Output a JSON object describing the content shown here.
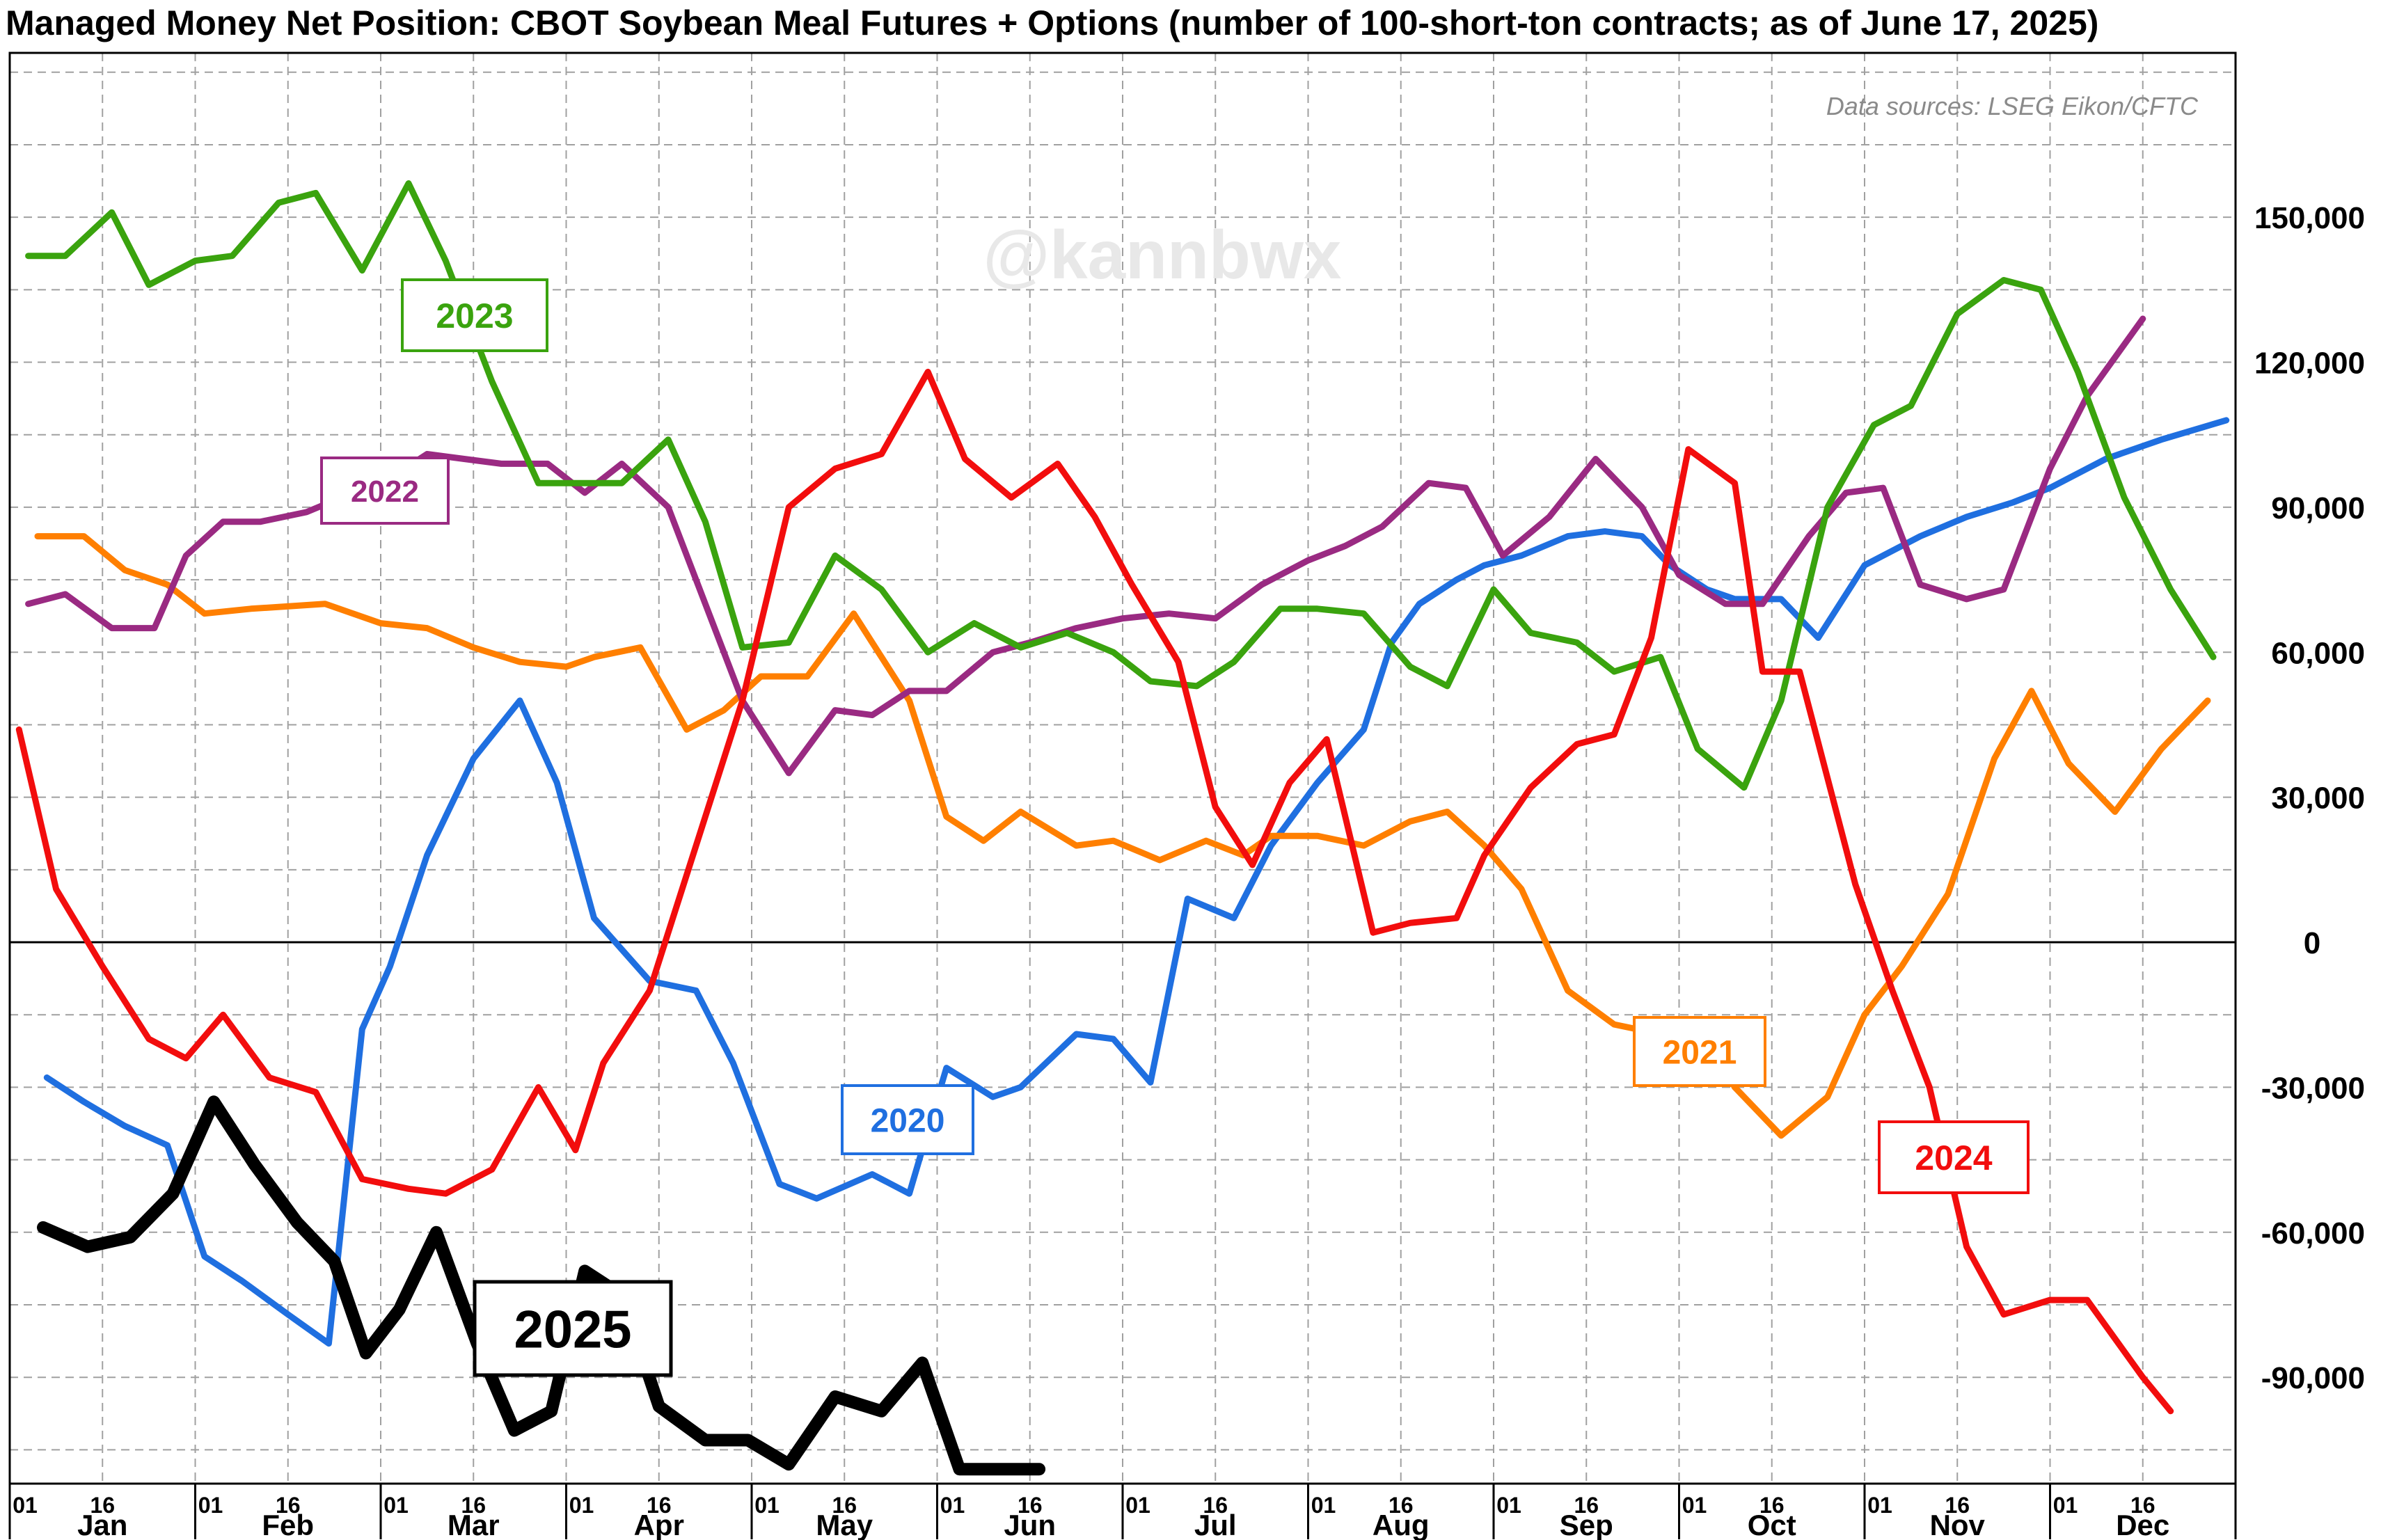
{
  "title": "Managed Money Net Position: CBOT Soybean Meal Futures + Options (number of 100-short-ton contracts; as of June 17, 2025)",
  "source_note": "Data sources: LSEG Eikon/CFTC",
  "watermark": "@kannbwx",
  "colors": {
    "2020": "#1f6fe0",
    "2021": "#ff7f00",
    "2022": "#9a2a82",
    "2023": "#3aa30e",
    "2024": "#f20d0d",
    "2025": "#000000",
    "grid": "#a0a0a0",
    "zero_line": "#000000"
  },
  "chart_data": {
    "type": "line",
    "title": "Managed Money Net Position: CBOT Soybean Meal Futures + Options (number of 100-short-ton contracts; as of June 17, 2025)",
    "xlabel": "",
    "ylabel": "",
    "x_axis": {
      "unit": "month",
      "range": [
        0,
        12
      ],
      "months": [
        "Jan",
        "Feb",
        "Mar",
        "Apr",
        "May",
        "Jun",
        "Jul",
        "Aug",
        "Sep",
        "Oct",
        "Nov",
        "Dec"
      ],
      "day_ticks": [
        "01",
        "16"
      ]
    },
    "ylim": [
      -112000,
      184000
    ],
    "y_ticks": [
      150000,
      120000,
      90000,
      60000,
      30000,
      0,
      -30000,
      -60000,
      -90000
    ],
    "y_tick_labels": [
      "150,000",
      "120,000",
      "90,000",
      "60,000",
      "30,000",
      "0",
      "-30,000",
      "-60,000",
      "-90,000"
    ],
    "y_axis_position": "right",
    "grid": true,
    "series": [
      {
        "name": "2020",
        "x": [
          0.2,
          0.4,
          0.62,
          0.85,
          1.05,
          1.25,
          1.5,
          1.72,
          1.9,
          2.05,
          2.25,
          2.5,
          2.75,
          2.95,
          3.15,
          3.45,
          3.7,
          3.9,
          4.15,
          4.35,
          4.65,
          4.85,
          5.05,
          5.3,
          5.45,
          5.75,
          5.95,
          6.15,
          6.35,
          6.6,
          6.8,
          7.05,
          7.3,
          7.45,
          7.6,
          7.8,
          7.95,
          8.15,
          8.4,
          8.6,
          8.8,
          8.95,
          9.15,
          9.3,
          9.55,
          9.75,
          10.0,
          10.3,
          10.55,
          10.8,
          11.0,
          11.3,
          11.6,
          11.95
        ],
        "y": [
          -28000,
          -33000,
          -38000,
          -42000,
          -65000,
          -70000,
          -77000,
          -83000,
          -18000,
          -5000,
          18000,
          38000,
          50000,
          33000,
          5000,
          -8000,
          -10000,
          -25000,
          -50000,
          -53000,
          -48000,
          -52000,
          -26000,
          -32000,
          -30000,
          -19000,
          -20000,
          -29000,
          9000,
          5000,
          20000,
          33000,
          44000,
          62000,
          70000,
          75000,
          78000,
          80000,
          84000,
          85000,
          84000,
          78000,
          73000,
          71000,
          71000,
          63000,
          78000,
          84000,
          88000,
          91000,
          94000,
          100000,
          104000,
          108000
        ]
      },
      {
        "name": "2021",
        "x": [
          0.15,
          0.4,
          0.62,
          0.85,
          1.05,
          1.3,
          1.7,
          2.0,
          2.25,
          2.5,
          2.75,
          3.0,
          3.15,
          3.4,
          3.65,
          3.85,
          4.05,
          4.3,
          4.55,
          4.85,
          5.05,
          5.25,
          5.45,
          5.75,
          5.95,
          6.2,
          6.45,
          6.65,
          6.8,
          7.05,
          7.3,
          7.55,
          7.75,
          7.95,
          8.15,
          8.4,
          8.65,
          8.9,
          9.1,
          9.3,
          9.55,
          9.8,
          10.0,
          10.2,
          10.45,
          10.7,
          10.9,
          11.1,
          11.35,
          11.6,
          11.85
        ],
        "y": [
          84000,
          84000,
          77000,
          74000,
          68000,
          69000,
          70000,
          66000,
          65000,
          61000,
          58000,
          57000,
          59000,
          61000,
          44000,
          48000,
          55000,
          55000,
          68000,
          50000,
          26000,
          21000,
          27000,
          20000,
          21000,
          17000,
          21000,
          18000,
          22000,
          22000,
          20000,
          25000,
          27000,
          20000,
          11000,
          -10000,
          -17000,
          -19000,
          -16000,
          -30000,
          -40000,
          -32000,
          -15000,
          -5000,
          10000,
          38000,
          52000,
          37000,
          27000,
          40000,
          50000
        ]
      },
      {
        "name": "2022",
        "x": [
          0.1,
          0.3,
          0.55,
          0.78,
          0.95,
          1.15,
          1.35,
          1.6,
          1.85,
          2.05,
          2.25,
          2.45,
          2.65,
          2.9,
          3.1,
          3.3,
          3.55,
          3.75,
          3.95,
          4.2,
          4.45,
          4.65,
          4.85,
          5.05,
          5.3,
          5.5,
          5.75,
          6.0,
          6.25,
          6.5,
          6.75,
          7.0,
          7.2,
          7.4,
          7.65,
          7.85,
          8.05,
          8.3,
          8.55,
          8.8,
          9.0,
          9.25,
          9.45,
          9.7,
          9.9,
          10.1,
          10.3,
          10.55,
          10.75,
          11.0,
          11.2,
          11.5
        ],
        "y": [
          70000,
          72000,
          65000,
          65000,
          80000,
          87000,
          87000,
          89000,
          93000,
          96000,
          101000,
          100000,
          99000,
          99000,
          93000,
          99000,
          90000,
          70000,
          50000,
          35000,
          48000,
          47000,
          52000,
          52000,
          60000,
          62000,
          65000,
          67000,
          68000,
          67000,
          74000,
          79000,
          82000,
          86000,
          95000,
          94000,
          80000,
          88000,
          100000,
          90000,
          76000,
          70000,
          70000,
          84000,
          93000,
          94000,
          74000,
          71000,
          73000,
          98000,
          113000,
          129000
        ]
      },
      {
        "name": "2023",
        "x": [
          0.1,
          0.3,
          0.55,
          0.75,
          1.0,
          1.2,
          1.45,
          1.65,
          1.9,
          2.15,
          2.35,
          2.6,
          2.85,
          3.05,
          3.3,
          3.55,
          3.75,
          3.95,
          4.2,
          4.45,
          4.7,
          4.95,
          5.2,
          5.45,
          5.7,
          5.95,
          6.15,
          6.4,
          6.6,
          6.85,
          7.05,
          7.3,
          7.55,
          7.75,
          8.0,
          8.2,
          8.45,
          8.65,
          8.9,
          9.1,
          9.35,
          9.55,
          9.8,
          10.05,
          10.25,
          10.5,
          10.75,
          10.95,
          11.15,
          11.4,
          11.65,
          11.88
        ],
        "y": [
          142000,
          142000,
          151000,
          136000,
          141000,
          142000,
          153000,
          155000,
          139000,
          157000,
          141000,
          116000,
          95000,
          95000,
          95000,
          104000,
          87000,
          61000,
          62000,
          80000,
          73000,
          60000,
          66000,
          61000,
          64000,
          60000,
          54000,
          53000,
          58000,
          69000,
          69000,
          68000,
          57000,
          53000,
          73000,
          64000,
          62000,
          56000,
          59000,
          40000,
          32000,
          50000,
          90000,
          107000,
          111000,
          130000,
          137000,
          135000,
          118000,
          92000,
          73000,
          59000
        ]
      },
      {
        "name": "2024",
        "x": [
          0.05,
          0.25,
          0.5,
          0.75,
          0.95,
          1.15,
          1.4,
          1.65,
          1.9,
          2.15,
          2.35,
          2.6,
          2.85,
          3.05,
          3.2,
          3.45,
          3.7,
          3.95,
          4.2,
          4.45,
          4.7,
          4.95,
          5.15,
          5.4,
          5.65,
          5.85,
          6.05,
          6.3,
          6.5,
          6.7,
          6.9,
          7.1,
          7.35,
          7.55,
          7.8,
          7.95,
          8.2,
          8.45,
          8.65,
          8.85,
          9.05,
          9.3,
          9.45,
          9.65,
          9.95,
          10.15,
          10.35,
          10.55,
          10.75,
          11.0,
          11.2,
          11.5,
          11.65
        ],
        "y": [
          44000,
          11000,
          -5000,
          -20000,
          -24000,
          -15000,
          -28000,
          -31000,
          -49000,
          -51000,
          -52000,
          -47000,
          -30000,
          -43000,
          -25000,
          -10000,
          20000,
          50000,
          90000,
          98000,
          101000,
          118000,
          100000,
          92000,
          99000,
          88000,
          74000,
          58000,
          28000,
          16000,
          33000,
          42000,
          2000,
          4000,
          5000,
          18000,
          32000,
          41000,
          43000,
          63000,
          102000,
          95000,
          56000,
          56000,
          12000,
          -10000,
          -30000,
          -63000,
          -77000,
          -74000,
          -74000,
          -90000,
          -97000
        ]
      },
      {
        "name": "2025",
        "x": [
          0.18,
          0.42,
          0.65,
          0.88,
          1.1,
          1.32,
          1.55,
          1.75,
          1.92,
          2.1,
          2.3,
          2.52,
          2.72,
          2.92,
          3.1,
          3.3,
          3.5,
          3.75,
          3.98,
          4.2,
          4.45,
          4.7,
          4.92,
          5.12,
          5.3,
          5.55
        ],
        "y": [
          -59000,
          -63000,
          -61000,
          -52000,
          -33000,
          -46000,
          -58000,
          -66000,
          -85000,
          -76000,
          -60000,
          -83000,
          -101000,
          -97000,
          -68000,
          -73000,
          -96000,
          -103000,
          -103000,
          -108000,
          -94000,
          -97000,
          -87000,
          -109000,
          -109000,
          -109000
        ]
      }
    ],
    "labels": [
      {
        "series": "2020",
        "text": "2020"
      },
      {
        "series": "2021",
        "text": "2021"
      },
      {
        "series": "2022",
        "text": "2022"
      },
      {
        "series": "2023",
        "text": "2023"
      },
      {
        "series": "2024",
        "text": "2024"
      },
      {
        "series": "2025",
        "text": "2025"
      }
    ]
  }
}
